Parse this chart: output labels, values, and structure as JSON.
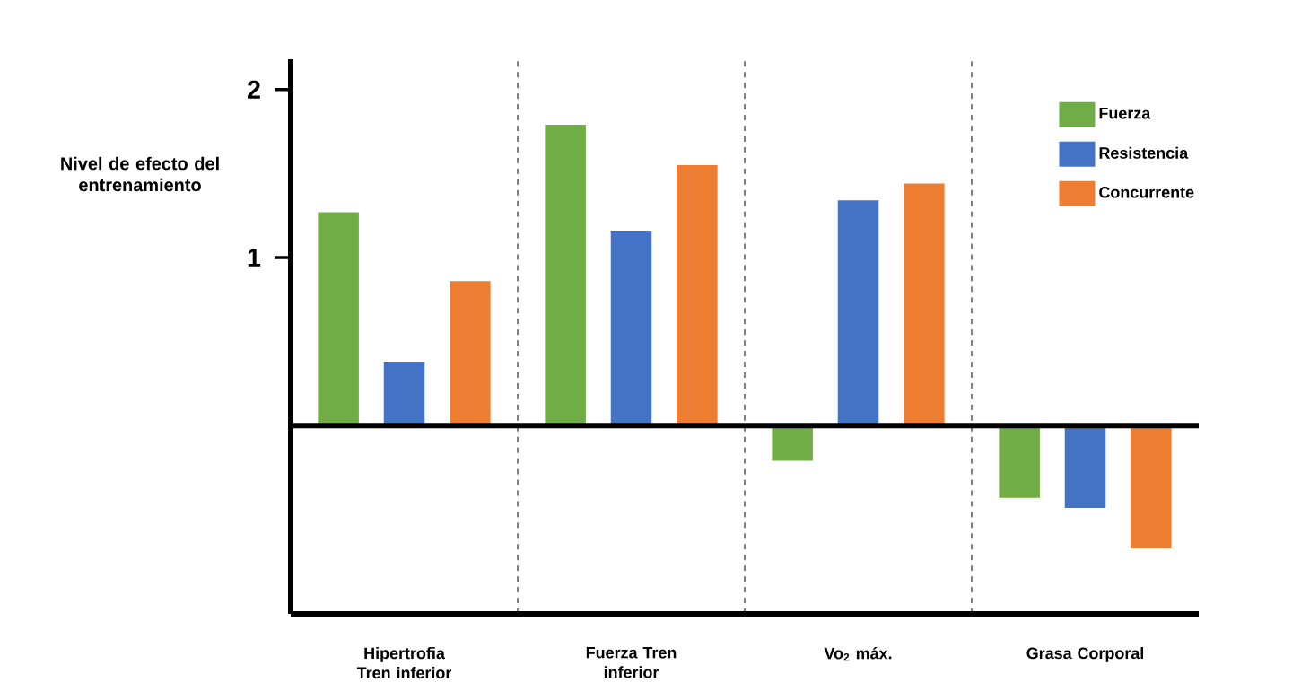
{
  "chart_data": {
    "type": "bar",
    "ylabel": "Nivel de efecto del entrenamiento",
    "categories": [
      "Hipertrofia Tren inferior",
      "Fuerza Tren inferior",
      "Vo$_{2}$ máx.",
      "Grasa Corporal"
    ],
    "series": [
      {
        "name": "Fuerza",
        "color": "#70ad47",
        "values": [
          1.27,
          1.79,
          -0.21,
          -0.43
        ]
      },
      {
        "name": "Resistencia",
        "color": "#4472c4",
        "values": [
          0.38,
          1.16,
          1.34,
          -0.49
        ]
      },
      {
        "name": "Concurrente",
        "color": "#ed7d31",
        "values": [
          0.86,
          1.55,
          1.44,
          -0.73
        ]
      }
    ],
    "ylim": [
      -1.12,
      2.18
    ],
    "yticks": [
      1,
      2
    ],
    "grid": "x",
    "legend": "top right",
    "ref_lines": [
      {
        "axis": "y",
        "value": 0,
        "color": "#000000"
      }
    ]
  }
}
